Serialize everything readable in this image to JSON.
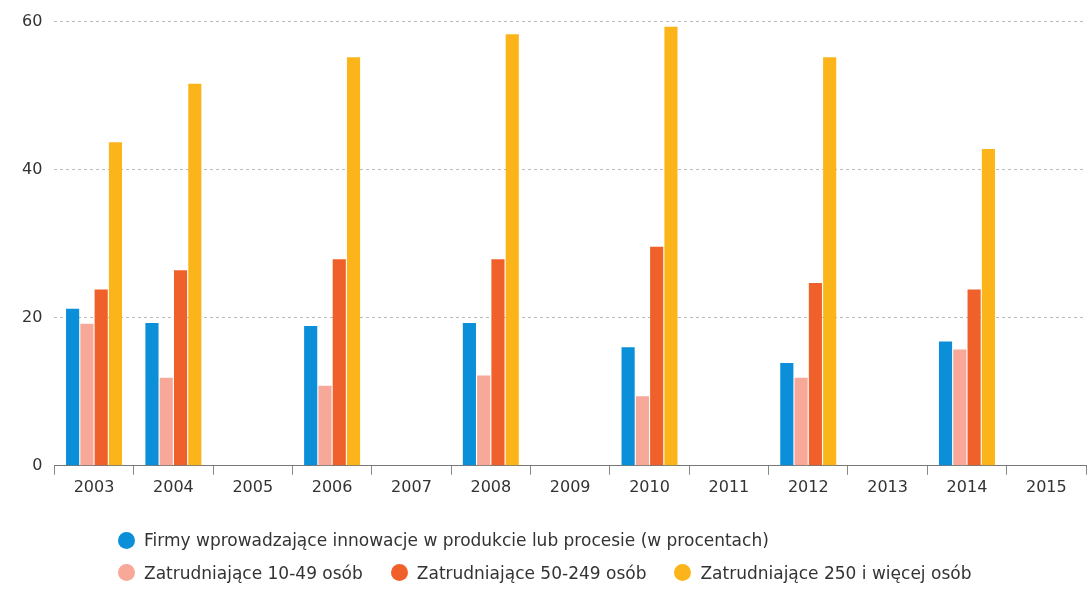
{
  "chart_data": {
    "type": "bar",
    "categories": [
      "2003",
      "2004",
      "2005",
      "2006",
      "2007",
      "2008",
      "2009",
      "2010",
      "2011",
      "2012",
      "2013",
      "2014",
      "2015"
    ],
    "series": [
      {
        "name": "Firmy wprowadzające innowacje w produkcie lub procesie (w procentach)",
        "color": "#0a8fd8",
        "values": [
          21.2,
          19.3,
          null,
          18.9,
          null,
          19.3,
          null,
          16.0,
          null,
          13.9,
          null,
          16.8,
          null
        ]
      },
      {
        "name": "Zatrudniające 10-49 osób",
        "color": "#f7a898",
        "values": [
          19.2,
          11.9,
          null,
          10.8,
          null,
          12.2,
          null,
          9.4,
          null,
          11.9,
          null,
          15.7,
          null
        ]
      },
      {
        "name": "Zatrudniające 50-249 osób",
        "color": "#f0602a",
        "values": [
          23.8,
          26.4,
          null,
          27.9,
          null,
          27.9,
          null,
          29.6,
          null,
          24.7,
          null,
          23.8,
          null
        ]
      },
      {
        "name": "Zatrudniające 250 i więcej osób",
        "color": "#fbb51a",
        "values": [
          43.7,
          51.6,
          null,
          55.2,
          null,
          58.3,
          null,
          59.3,
          null,
          55.2,
          null,
          42.8,
          null
        ]
      }
    ],
    "ylim": [
      0,
      60
    ],
    "yticks": [
      0,
      20,
      40,
      60
    ],
    "grid": "y",
    "legend": "bottom"
  }
}
